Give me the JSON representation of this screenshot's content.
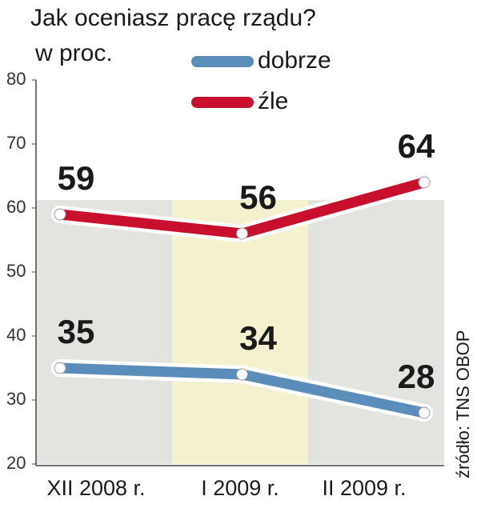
{
  "chart_data": {
    "type": "line",
    "title": "Jak oceniasz pracę rządu?",
    "subtitle": "w proc.",
    "source": "źródło: TNS OBOP",
    "categories": [
      "XII 2008 r.",
      "I 2009 r.",
      "II 2009 r."
    ],
    "series": [
      {
        "name": "dobrze",
        "color": "#5b8dba",
        "values": [
          35,
          34,
          28
        ]
      },
      {
        "name": "źle",
        "color": "#c8102e",
        "values": [
          59,
          56,
          64
        ]
      }
    ],
    "ylim": [
      20,
      80
    ],
    "yticks": [
      20,
      30,
      40,
      50,
      60,
      70,
      80
    ]
  }
}
